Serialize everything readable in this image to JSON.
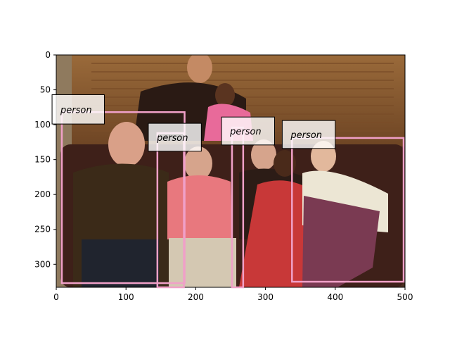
{
  "chart_data": {
    "type": "image-annotation",
    "image": {
      "width": 500,
      "height": 333,
      "description_colors": {
        "wall": "#8b5a2b",
        "sofa": "#4a2a22",
        "background_dark": "#3a2418"
      }
    },
    "xlim": [
      0,
      500
    ],
    "ylim": [
      333,
      0
    ],
    "x_ticks": [
      0,
      100,
      200,
      300,
      400,
      500
    ],
    "y_ticks": [
      0,
      50,
      100,
      150,
      200,
      250,
      300
    ],
    "x_tick_labels": [
      "0",
      "100",
      "200",
      "300",
      "400",
      "500"
    ],
    "y_tick_labels": [
      "0",
      "50",
      "100",
      "150",
      "200",
      "250",
      "300"
    ],
    "box_color": "#f0a0c8",
    "boxes": [
      {
        "label": "person",
        "x0": 8,
        "y0": 82,
        "x1": 184,
        "y1": 327
      },
      {
        "label": "person",
        "x0": 145,
        "y0": 112,
        "x1": 183,
        "y1": 333
      },
      {
        "label": "person",
        "x0": 252,
        "y0": 104,
        "x1": 268,
        "y1": 333
      },
      {
        "label": "person",
        "x0": 338,
        "y0": 119,
        "x1": 498,
        "y1": 325
      }
    ],
    "label_boxes": [
      {
        "text": "person",
        "x0": -6,
        "y0": 57,
        "x1": 69,
        "y1": 99
      },
      {
        "text": "person",
        "x0": 132,
        "y0": 98,
        "x1": 208,
        "y1": 138
      },
      {
        "text": "person",
        "x0": 237,
        "y0": 89,
        "x1": 313,
        "y1": 129
      },
      {
        "text": "person",
        "x0": 324,
        "y0": 94,
        "x1": 400,
        "y1": 134
      }
    ]
  }
}
